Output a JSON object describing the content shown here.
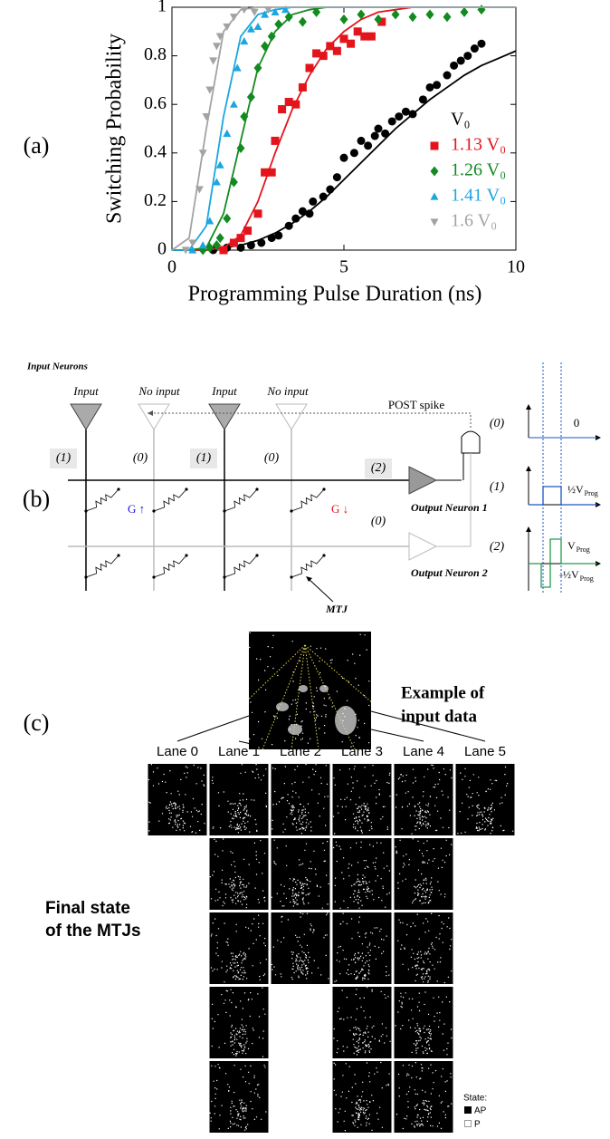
{
  "chart_data": {
    "type": "scatter",
    "panel_label": "(a)",
    "x_label": "Programming Pulse Duration (ns)",
    "y_label": "Switching Probability",
    "xlim": [
      0,
      10
    ],
    "ylim": [
      0,
      1
    ],
    "xticks": [
      0,
      5,
      10
    ],
    "yticks": [
      0,
      0.2,
      0.4,
      0.6,
      0.8,
      1
    ],
    "legend_position": "lower right",
    "fit_x": [
      0,
      0.5,
      1,
      1.5,
      2,
      2.5,
      3,
      3.5,
      4,
      4.5,
      5,
      5.5,
      6,
      6.5,
      7,
      7.5,
      8,
      8.5,
      9,
      9.5,
      10
    ],
    "series": [
      {
        "name": "V₀",
        "color": "#000000",
        "marker": "circle",
        "x": [
          1.2,
          1.6,
          2.0,
          2.3,
          2.6,
          2.9,
          3.1,
          3.4,
          3.6,
          3.8,
          4.0,
          4.1,
          4.4,
          4.6,
          4.8,
          5.0,
          5.3,
          5.5,
          5.7,
          5.9,
          6.0,
          6.2,
          6.4,
          6.6,
          6.8,
          7.0,
          7.3,
          7.5,
          7.7,
          8.0,
          8.2,
          8.4,
          8.6,
          8.8,
          9.0
        ],
        "values": [
          0,
          0.01,
          0.01,
          0.02,
          0.03,
          0.05,
          0.06,
          0.1,
          0.13,
          0.16,
          0.15,
          0.2,
          0.22,
          0.25,
          0.3,
          0.38,
          0.4,
          0.45,
          0.43,
          0.47,
          0.5,
          0.48,
          0.53,
          0.55,
          0.57,
          0.56,
          0.62,
          0.67,
          0.68,
          0.72,
          0.76,
          0.78,
          0.8,
          0.83,
          0.85
        ],
        "fit": [
          0,
          0,
          0,
          0.01,
          0.02,
          0.04,
          0.07,
          0.11,
          0.16,
          0.22,
          0.29,
          0.36,
          0.43,
          0.5,
          0.56,
          0.62,
          0.67,
          0.72,
          0.76,
          0.79,
          0.82
        ]
      },
      {
        "name": "1.13 V₀",
        "color": "#e3141b",
        "marker": "square",
        "x": [
          1.5,
          1.8,
          2.0,
          2.2,
          2.5,
          2.7,
          2.9,
          3.0,
          3.2,
          3.4,
          3.6,
          3.8,
          4.0,
          4.2,
          4.4,
          4.6,
          4.8,
          5.0,
          5.2,
          5.4,
          5.6,
          5.8,
          6.1
        ],
        "values": [
          0,
          0.03,
          0.05,
          0.08,
          0.15,
          0.32,
          0.32,
          0.45,
          0.58,
          0.61,
          0.6,
          0.67,
          0.75,
          0.81,
          0.8,
          0.84,
          0.82,
          0.87,
          0.85,
          0.9,
          0.88,
          0.88,
          0.94
        ],
        "fit": [
          0,
          0,
          0,
          0.01,
          0.06,
          0.2,
          0.4,
          0.58,
          0.72,
          0.83,
          0.9,
          0.95,
          0.98,
          0.99,
          1,
          1,
          1,
          1,
          1,
          1,
          1
        ]
      },
      {
        "name": "1.26 V₀",
        "color": "#138a1f",
        "marker": "diamond",
        "x": [
          0.9,
          1.1,
          1.3,
          1.4,
          1.6,
          1.8,
          2.0,
          2.1,
          2.3,
          2.5,
          2.7,
          2.9,
          3.1,
          3.4,
          3.8,
          4.2,
          5.0,
          5.5,
          6.0,
          6.5,
          7.0,
          7.5,
          8.0,
          8.5,
          9.0
        ],
        "values": [
          0,
          0.01,
          0.02,
          0.05,
          0.13,
          0.28,
          0.42,
          0.55,
          0.63,
          0.75,
          0.84,
          0.88,
          0.93,
          0.96,
          0.94,
          0.98,
          0.95,
          0.97,
          0.95,
          0.97,
          0.96,
          0.97,
          0.96,
          0.98,
          0.99
        ],
        "fit": [
          0,
          0,
          0.01,
          0.15,
          0.45,
          0.75,
          0.9,
          0.97,
          0.99,
          1,
          1,
          1,
          1,
          1,
          1,
          1,
          1,
          1,
          1,
          1,
          1
        ]
      },
      {
        "name": "1.41 V₀",
        "color": "#1ba6df",
        "marker": "triangle-up",
        "x": [
          0.6,
          0.9,
          1.1,
          1.3,
          1.4,
          1.6,
          1.8,
          1.9,
          2.1,
          2.3,
          2.5,
          2.7,
          3.0,
          3.3
        ],
        "values": [
          0,
          0.02,
          0.12,
          0.28,
          0.35,
          0.48,
          0.6,
          0.75,
          0.86,
          0.91,
          0.92,
          0.97,
          0.98,
          0.99
        ],
        "fit": [
          0,
          0,
          0.1,
          0.55,
          0.88,
          0.97,
          0.99,
          1,
          1,
          1,
          1,
          1,
          1,
          1,
          1,
          1,
          1,
          1,
          1,
          1,
          1
        ]
      },
      {
        "name": "1.6 V₀",
        "color": "#a3a3a3",
        "marker": "triangle-down",
        "x": [
          0.4,
          0.6,
          0.8,
          0.9,
          1.0,
          1.1,
          1.2,
          1.3,
          1.4,
          1.6,
          1.8,
          2.1,
          2.4,
          2.8
        ],
        "values": [
          0,
          0.03,
          0.25,
          0.4,
          0.55,
          0.66,
          0.78,
          0.84,
          0.88,
          0.92,
          0.96,
          0.99,
          0.98,
          0.99
        ],
        "fit": [
          0,
          0.05,
          0.5,
          0.9,
          0.99,
          1,
          1,
          1,
          1,
          1,
          1,
          1,
          1,
          1,
          1,
          1,
          1,
          1,
          1,
          1,
          1
        ]
      }
    ]
  },
  "diagram": {
    "panel_label": "(b)",
    "title": "Input Neurons",
    "neurons": [
      "Input",
      "No input",
      "Input",
      "No input"
    ],
    "post_spike": "POST spike",
    "column_states": [
      "(1)",
      "(0)",
      "(1)",
      "(0)"
    ],
    "row_states": [
      "(2)",
      "(0)"
    ],
    "conductance_up": "G ↑",
    "conductance_down": "G ↓",
    "outputs": [
      "Output Neuron 1",
      "Output Neuron 2"
    ],
    "mtj": "MTJ",
    "waveforms": [
      {
        "state": "(0)",
        "label": "0"
      },
      {
        "state": "(1)",
        "label": "½V",
        "sub": "Prog"
      },
      {
        "state": "(2)",
        "high": "V",
        "high_sub": "Prog",
        "low": "-½V",
        "low_sub": "Prog"
      }
    ]
  },
  "image_panel": {
    "panel_label": "(c)",
    "input_caption": [
      "Example of",
      "input data"
    ],
    "lanes": [
      "Lane 0",
      "Lane 1",
      "Lane 2",
      "Lane 3",
      "Lane 4",
      "Lane 5"
    ],
    "final_caption": [
      "Final state",
      "of the MTJs"
    ],
    "legend_title": "State:",
    "legend_items": [
      "AP",
      "P"
    ]
  }
}
